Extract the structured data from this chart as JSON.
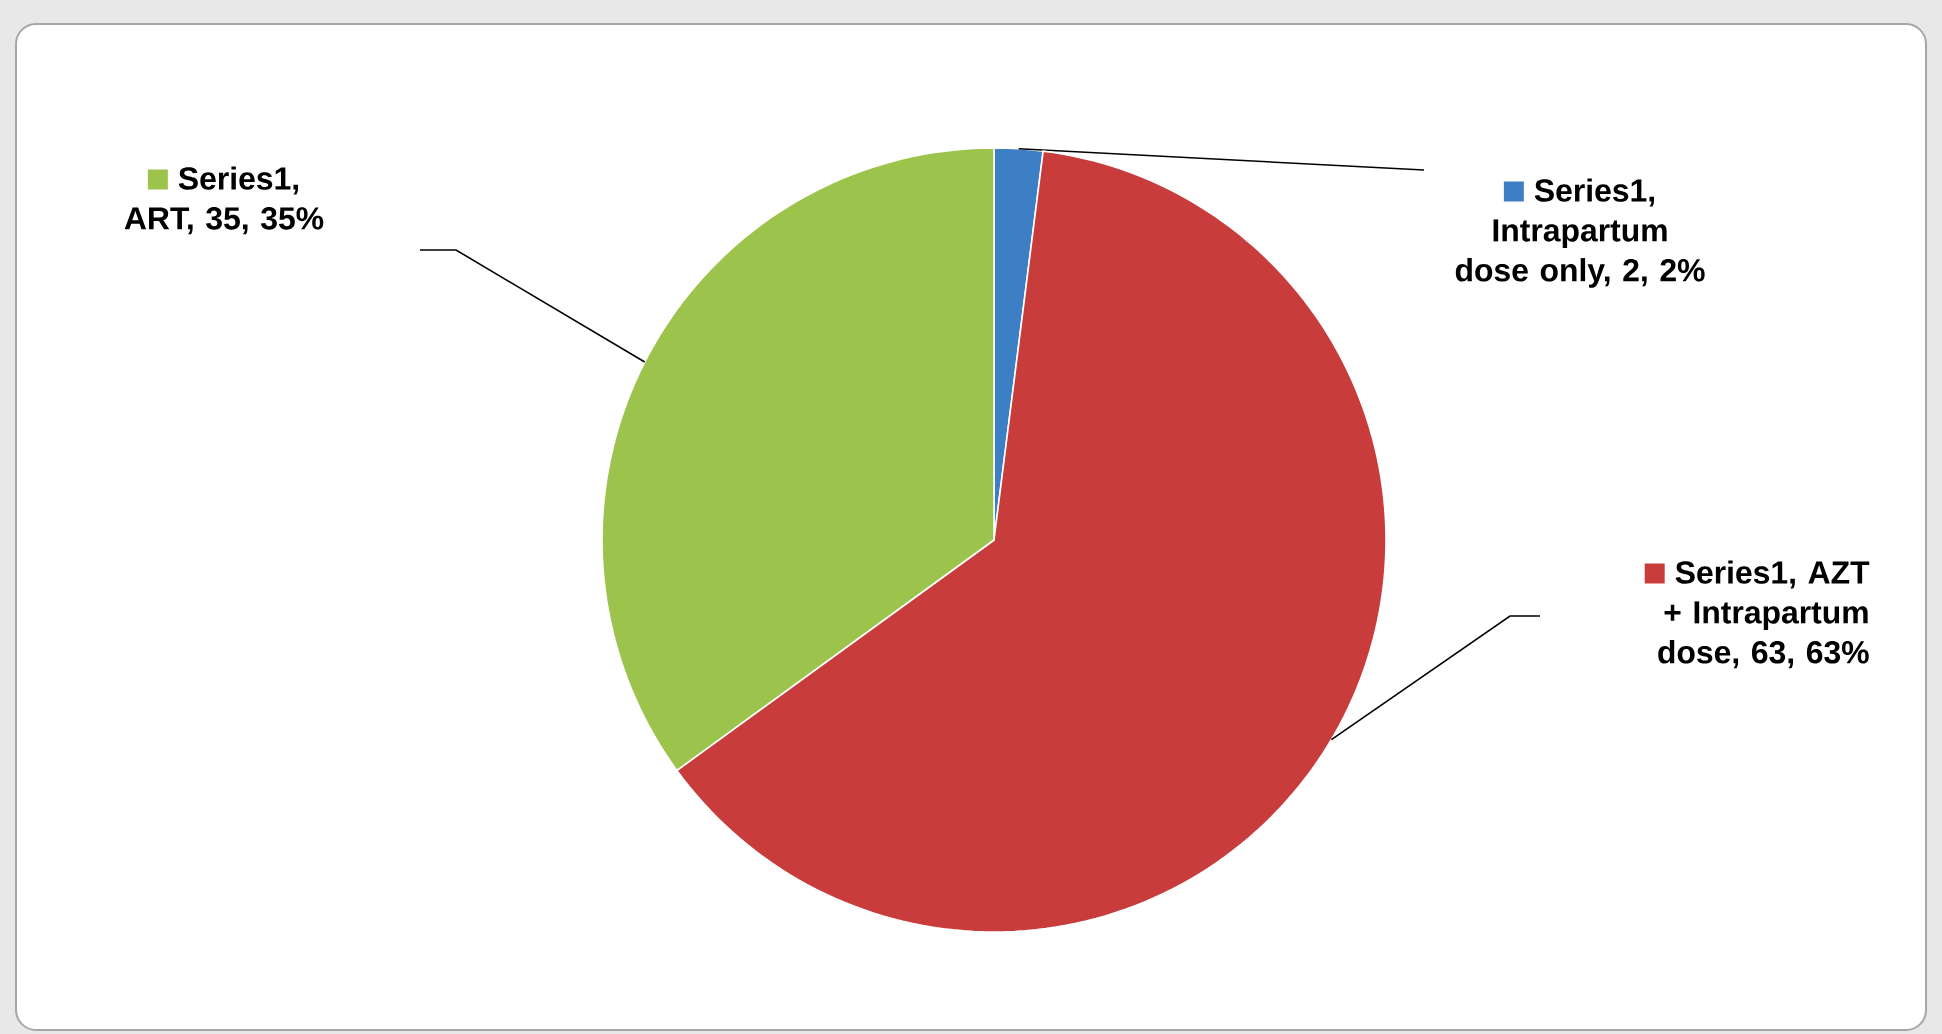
{
  "chart_data": {
    "type": "pie",
    "categories": [
      "Series1, Intrapartum dose only, 2, 2%",
      "Series1, AZT + Intrapartum dose, 63, 63%",
      "Series1, ART, 35, 35%"
    ],
    "legend": "right",
    "series": [
      {
        "values": [
          2,
          63,
          35
        ],
        "colors": [
          "#3d7fc4",
          "#c83c3c",
          "#9cc44c"
        ]
      }
    ]
  }
}
